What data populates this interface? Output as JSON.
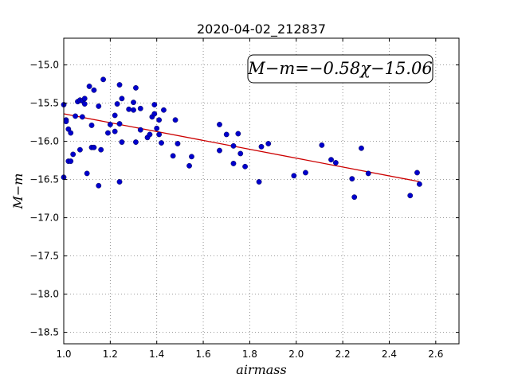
{
  "chart_data": {
    "type": "scatter",
    "title": "2020-04-02_212837",
    "xlabel": "airmass",
    "ylabel": "M−m",
    "xlim": [
      1.0,
      2.7
    ],
    "ylim": [
      -18.65,
      -14.65
    ],
    "y_inverted": true,
    "grid": true,
    "x_ticks": [
      1.0,
      1.2,
      1.4,
      1.6,
      1.8,
      2.0,
      2.2,
      2.4,
      2.6
    ],
    "x_tick_labels": [
      "1.0",
      "1.2",
      "1.4",
      "1.6",
      "1.8",
      "2.0",
      "2.2",
      "2.4",
      "2.6"
    ],
    "y_ticks": [
      -15.0,
      -15.5,
      -16.0,
      -16.5,
      -17.0,
      -17.5,
      -18.0,
      -18.5
    ],
    "y_tick_labels": [
      "−15.0",
      "−15.5",
      "−16.0",
      "−16.5",
      "−17.0",
      "−17.5",
      "−18.0",
      "−18.5"
    ],
    "annotation": "M−m=−0.58χ−15.06",
    "annotation_location": "upper-right",
    "fit_line": {
      "slope": -0.58,
      "intercept": -15.06,
      "x_range": [
        1.0,
        2.53
      ],
      "color": "#cc0000"
    },
    "marker_color": "#0000cc",
    "points": [
      {
        "x": 1.0,
        "y": -15.52
      },
      {
        "x": 1.0,
        "y": -16.47
      },
      {
        "x": 1.01,
        "y": -15.72
      },
      {
        "x": 1.01,
        "y": -15.74
      },
      {
        "x": 1.02,
        "y": -15.84
      },
      {
        "x": 1.02,
        "y": -16.26
      },
      {
        "x": 1.03,
        "y": -15.89
      },
      {
        "x": 1.03,
        "y": -16.26
      },
      {
        "x": 1.04,
        "y": -16.17
      },
      {
        "x": 1.05,
        "y": -15.67
      },
      {
        "x": 1.06,
        "y": -15.48
      },
      {
        "x": 1.07,
        "y": -16.11
      },
      {
        "x": 1.07,
        "y": -15.46
      },
      {
        "x": 1.08,
        "y": -15.68
      },
      {
        "x": 1.08,
        "y": -15.47
      },
      {
        "x": 1.09,
        "y": -15.44
      },
      {
        "x": 1.09,
        "y": -15.51
      },
      {
        "x": 1.1,
        "y": -16.42
      },
      {
        "x": 1.11,
        "y": -15.28
      },
      {
        "x": 1.12,
        "y": -16.08
      },
      {
        "x": 1.12,
        "y": -15.79
      },
      {
        "x": 1.13,
        "y": -15.33
      },
      {
        "x": 1.13,
        "y": -16.08
      },
      {
        "x": 1.15,
        "y": -15.54
      },
      {
        "x": 1.15,
        "y": -16.58
      },
      {
        "x": 1.16,
        "y": -16.11
      },
      {
        "x": 1.17,
        "y": -15.19
      },
      {
        "x": 1.19,
        "y": -15.89
      },
      {
        "x": 1.2,
        "y": -15.78
      },
      {
        "x": 1.22,
        "y": -15.66
      },
      {
        "x": 1.22,
        "y": -15.87
      },
      {
        "x": 1.23,
        "y": -15.51
      },
      {
        "x": 1.24,
        "y": -15.26
      },
      {
        "x": 1.24,
        "y": -15.77
      },
      {
        "x": 1.24,
        "y": -16.53
      },
      {
        "x": 1.25,
        "y": -15.44
      },
      {
        "x": 1.25,
        "y": -16.01
      },
      {
        "x": 1.28,
        "y": -15.58
      },
      {
        "x": 1.3,
        "y": -15.49
      },
      {
        "x": 1.3,
        "y": -15.59
      },
      {
        "x": 1.31,
        "y": -15.3
      },
      {
        "x": 1.31,
        "y": -16.01
      },
      {
        "x": 1.33,
        "y": -15.57
      },
      {
        "x": 1.33,
        "y": -15.85
      },
      {
        "x": 1.36,
        "y": -15.95
      },
      {
        "x": 1.37,
        "y": -15.91
      },
      {
        "x": 1.38,
        "y": -15.68
      },
      {
        "x": 1.39,
        "y": -15.52
      },
      {
        "x": 1.39,
        "y": -15.64
      },
      {
        "x": 1.4,
        "y": -15.83
      },
      {
        "x": 1.41,
        "y": -15.91
      },
      {
        "x": 1.41,
        "y": -15.72
      },
      {
        "x": 1.42,
        "y": -16.02
      },
      {
        "x": 1.43,
        "y": -15.59
      },
      {
        "x": 1.47,
        "y": -16.19
      },
      {
        "x": 1.48,
        "y": -15.72
      },
      {
        "x": 1.49,
        "y": -16.03
      },
      {
        "x": 1.54,
        "y": -16.32
      },
      {
        "x": 1.55,
        "y": -16.2
      },
      {
        "x": 1.67,
        "y": -15.78
      },
      {
        "x": 1.67,
        "y": -16.12
      },
      {
        "x": 1.7,
        "y": -15.91
      },
      {
        "x": 1.73,
        "y": -16.06
      },
      {
        "x": 1.73,
        "y": -16.29
      },
      {
        "x": 1.75,
        "y": -15.9
      },
      {
        "x": 1.76,
        "y": -16.16
      },
      {
        "x": 1.78,
        "y": -16.33
      },
      {
        "x": 1.84,
        "y": -16.53
      },
      {
        "x": 1.85,
        "y": -16.07
      },
      {
        "x": 1.88,
        "y": -16.03
      },
      {
        "x": 1.99,
        "y": -16.45
      },
      {
        "x": 2.04,
        "y": -16.41
      },
      {
        "x": 2.11,
        "y": -16.05
      },
      {
        "x": 2.15,
        "y": -16.24
      },
      {
        "x": 2.17,
        "y": -16.28
      },
      {
        "x": 2.24,
        "y": -16.49
      },
      {
        "x": 2.25,
        "y": -16.73
      },
      {
        "x": 2.28,
        "y": -16.09
      },
      {
        "x": 2.31,
        "y": -16.42
      },
      {
        "x": 2.49,
        "y": -16.71
      },
      {
        "x": 2.52,
        "y": -16.41
      },
      {
        "x": 2.53,
        "y": -16.56
      }
    ]
  }
}
